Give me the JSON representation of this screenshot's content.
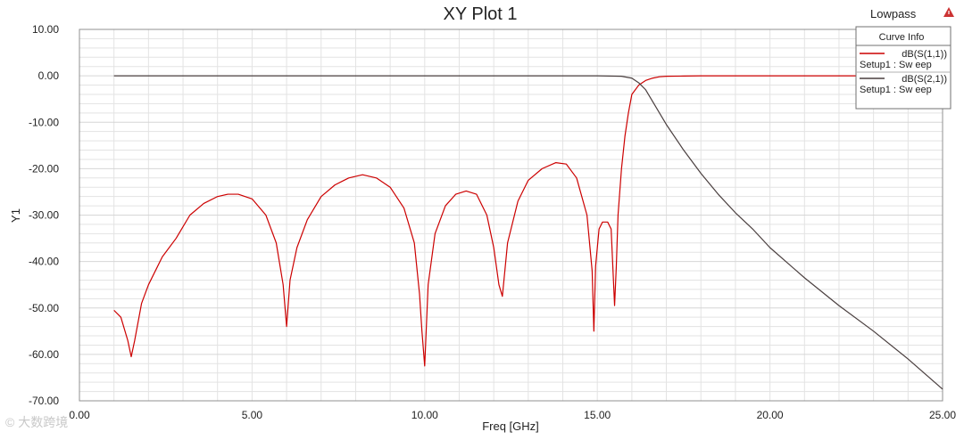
{
  "chart_data": {
    "type": "line",
    "title": "XY Plot 1",
    "xlabel": "Freq [GHz]",
    "ylabel": "Y1",
    "xlim": [
      0,
      25
    ],
    "ylim": [
      -70,
      10
    ],
    "grid": true,
    "legend_placement": "top-right",
    "x_ticks": [
      "0.00",
      "5.00",
      "10.00",
      "15.00",
      "20.00",
      "25.00"
    ],
    "y_ticks": [
      "10.00",
      "0.00",
      "-10.00",
      "-20.00",
      "-30.00",
      "-40.00",
      "-50.00",
      "-60.00",
      "-70.00"
    ],
    "series": [
      {
        "name": "dB(S(1,1))",
        "setup": "Setup1 : Sw eep",
        "color": "#cc0000",
        "x": [
          1,
          1.2,
          1.4,
          1.5,
          1.6,
          1.8,
          2,
          2.4,
          2.8,
          3.2,
          3.6,
          4,
          4.3,
          4.6,
          5,
          5.4,
          5.7,
          5.9,
          6,
          6.1,
          6.3,
          6.6,
          7,
          7.4,
          7.8,
          8.2,
          8.6,
          9,
          9.4,
          9.7,
          9.85,
          9.92,
          10,
          10.1,
          10.3,
          10.6,
          10.9,
          11.2,
          11.5,
          11.8,
          12,
          12.15,
          12.25,
          12.4,
          12.7,
          13,
          13.4,
          13.8,
          14.1,
          14.4,
          14.7,
          14.85,
          14.9,
          14.95,
          15.05,
          15.15,
          15.3,
          15.4,
          15.5,
          15.55,
          15.6,
          15.7,
          15.8,
          15.9,
          16,
          16.2,
          16.4,
          16.6,
          16.8,
          17,
          17.5,
          18,
          20,
          22,
          24
        ],
        "values": [
          -50.5,
          -52,
          -57,
          -60.5,
          -57,
          -49,
          -45,
          -39,
          -35,
          -30,
          -27.5,
          -26,
          -25.5,
          -25.5,
          -26.5,
          -30,
          -36,
          -45,
          -54,
          -44,
          -37,
          -31,
          -26,
          -23.5,
          -22,
          -21.3,
          -22,
          -24,
          -28.5,
          -36,
          -47,
          -55,
          -62.5,
          -45,
          -34,
          -28,
          -25.5,
          -24.8,
          -25.5,
          -30,
          -37,
          -45,
          -47.5,
          -36,
          -27,
          -22.5,
          -20,
          -18.7,
          -19,
          -22,
          -30,
          -42,
          -55,
          -41,
          -33,
          -31.5,
          -31.5,
          -33,
          -49.5,
          -41,
          -30,
          -20,
          -13,
          -8,
          -4,
          -2,
          -1,
          -0.5,
          -0.2,
          -0.1,
          -0.05,
          0,
          0,
          0,
          0
        ]
      },
      {
        "name": "dB(S(2,1))",
        "setup": "Setup1 : Sw eep",
        "color": "#4a3f3f",
        "x": [
          1,
          4,
          8,
          12,
          15,
          15.7,
          16,
          16.2,
          16.4,
          16.6,
          17,
          17.5,
          18,
          18.5,
          19,
          19.5,
          20,
          21,
          22,
          23,
          24,
          25
        ],
        "values": [
          0,
          0,
          0,
          0,
          0,
          -0.1,
          -0.5,
          -1.5,
          -3,
          -5.5,
          -10.5,
          -16,
          -21,
          -25.5,
          -29.5,
          -33,
          -37,
          -43.5,
          -49.5,
          -55,
          -61,
          -67.5
        ]
      }
    ]
  },
  "header": {
    "corner_label": "Lowpass"
  },
  "legend": {
    "title": "Curve Info"
  },
  "watermark": "© 大数跨境",
  "colors": {
    "grid": "#e3e3e3",
    "frame": "#909090",
    "marker": "#cc3333"
  }
}
